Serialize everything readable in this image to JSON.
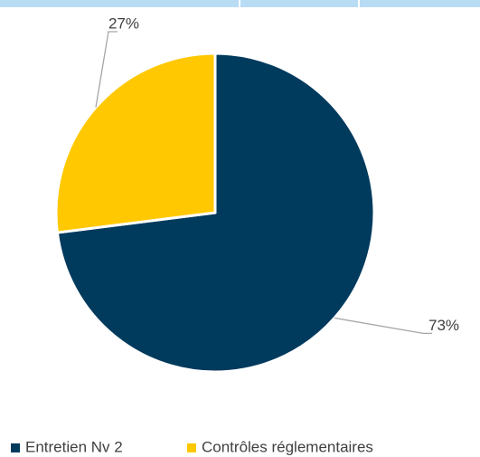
{
  "chart_data": {
    "type": "pie",
    "categories": [
      "Entretien Nv 2",
      "Contrôles réglementaires"
    ],
    "values": [
      73,
      27
    ],
    "value_labels": [
      "73%",
      "27%"
    ],
    "colors": [
      "#003a5d",
      "#ffc800"
    ],
    "legend": "bottom"
  }
}
